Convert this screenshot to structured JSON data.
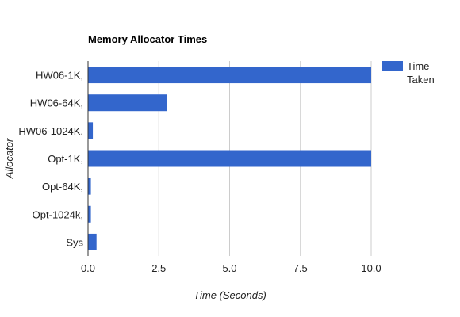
{
  "chart_data": {
    "type": "bar",
    "orientation": "horizontal",
    "title": "Memory Allocator Times",
    "xlabel": "Time (Seconds)",
    "ylabel": "Allocator",
    "categories": [
      "HW06-1K,",
      "HW06-64K,",
      "HW06-1024K,",
      "Opt-1K,",
      "Opt-64K,",
      "Opt-1024k,",
      "Sys"
    ],
    "series": [
      {
        "name": "Time Taken",
        "legend_lines": [
          "Time",
          "Taken"
        ],
        "color": "#3366cc",
        "values": [
          10.0,
          2.8,
          0.17,
          10.0,
          0.1,
          0.1,
          0.3
        ]
      }
    ],
    "xlim": [
      0,
      10
    ],
    "xticks": [
      0,
      2.5,
      5,
      7.5,
      10
    ],
    "xtick_labels": [
      "0.0",
      "2.5",
      "5.0",
      "7.5",
      "10.0"
    ],
    "grid": true,
    "legend_position": "right"
  }
}
